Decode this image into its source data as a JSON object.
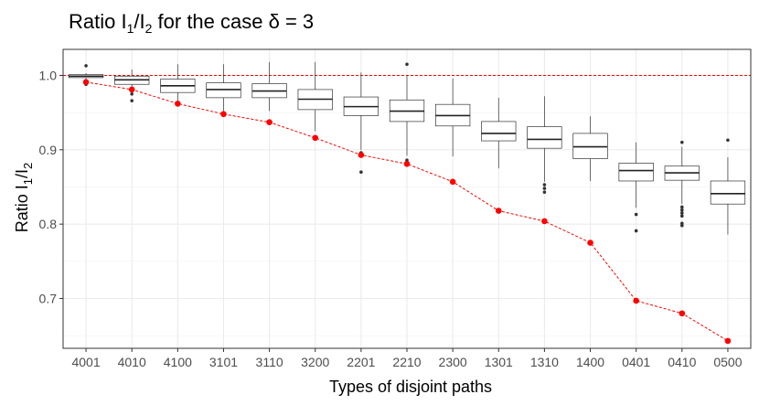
{
  "chart_data": {
    "type": "box",
    "title_main": "Ratio I",
    "title_sub1": "1",
    "title_slash": "/I",
    "title_sub2": "2",
    "title_rest": " for the case ",
    "title_delta": "δ",
    "title_eq": " = 3",
    "xlabel": "Types of disjoint paths",
    "ylabel_main": "Ratio I",
    "ylabel_sub1": "1",
    "ylabel_slash": "/I",
    "ylabel_sub2": "2",
    "ylim": [
      0.633,
      1.035
    ],
    "yticks": [
      0.7,
      0.8,
      0.9,
      1.0
    ],
    "ytick_labels": [
      "0.7",
      "0.8",
      "0.9",
      "1.0"
    ],
    "reference_line": 1.0,
    "colors": {
      "reference": "#ff0000",
      "points": "#ff0000",
      "box": "#333333",
      "grid": "#ebebeb"
    },
    "categories": [
      "4001",
      "4010",
      "4100",
      "3101",
      "3110",
      "3200",
      "2201",
      "2210",
      "2300",
      "1301",
      "1310",
      "1400",
      "0401",
      "0410",
      "0500"
    ],
    "boxes": [
      {
        "min": 0.994,
        "q1": 0.997,
        "median": 0.999,
        "q3": 1.001,
        "max": 1.003,
        "outliers": [
          1.013,
          0.99,
          0.988
        ]
      },
      {
        "min": 0.978,
        "q1": 0.988,
        "median": 0.994,
        "q3": 0.999,
        "max": 1.008,
        "outliers": [
          0.966,
          0.975
        ]
      },
      {
        "min": 0.958,
        "q1": 0.977,
        "median": 0.986,
        "q3": 0.995,
        "max": 1.015,
        "outliers": []
      },
      {
        "min": 0.952,
        "q1": 0.97,
        "median": 0.981,
        "q3": 0.99,
        "max": 1.015,
        "outliers": []
      },
      {
        "min": 0.952,
        "q1": 0.97,
        "median": 0.979,
        "q3": 0.989,
        "max": 1.018,
        "outliers": []
      },
      {
        "min": 0.925,
        "q1": 0.954,
        "median": 0.968,
        "q3": 0.981,
        "max": 1.018,
        "outliers": []
      },
      {
        "min": 0.9,
        "q1": 0.946,
        "median": 0.958,
        "q3": 0.971,
        "max": 1.004,
        "outliers": [
          0.896,
          0.893,
          0.87
        ]
      },
      {
        "min": 0.892,
        "q1": 0.938,
        "median": 0.952,
        "q3": 0.967,
        "max": 1.0,
        "outliers": [
          1.015,
          0.886,
          0.883
        ]
      },
      {
        "min": 0.891,
        "q1": 0.932,
        "median": 0.946,
        "q3": 0.961,
        "max": 0.996,
        "outliers": []
      },
      {
        "min": 0.875,
        "q1": 0.912,
        "median": 0.922,
        "q3": 0.938,
        "max": 0.97,
        "outliers": []
      },
      {
        "min": 0.857,
        "q1": 0.902,
        "median": 0.914,
        "q3": 0.931,
        "max": 0.972,
        "outliers": [
          0.853,
          0.848,
          0.843
        ]
      },
      {
        "min": 0.858,
        "q1": 0.888,
        "median": 0.904,
        "q3": 0.922,
        "max": 0.945,
        "outliers": []
      },
      {
        "min": 0.822,
        "q1": 0.858,
        "median": 0.872,
        "q3": 0.882,
        "max": 0.91,
        "outliers": [
          0.813,
          0.791
        ]
      },
      {
        "min": 0.827,
        "q1": 0.859,
        "median": 0.869,
        "q3": 0.878,
        "max": 0.904,
        "outliers": [
          0.91,
          0.823,
          0.819,
          0.815,
          0.811,
          0.801,
          0.798
        ]
      },
      {
        "min": 0.786,
        "q1": 0.827,
        "median": 0.841,
        "q3": 0.858,
        "max": 0.89,
        "outliers": [
          0.913
        ]
      }
    ],
    "series": [
      {
        "name": "red points",
        "values": [
          0.991,
          0.981,
          0.962,
          0.948,
          0.937,
          0.916,
          0.893,
          0.881,
          0.857,
          0.818,
          0.804,
          0.775,
          0.697,
          0.68,
          0.643
        ]
      }
    ]
  }
}
